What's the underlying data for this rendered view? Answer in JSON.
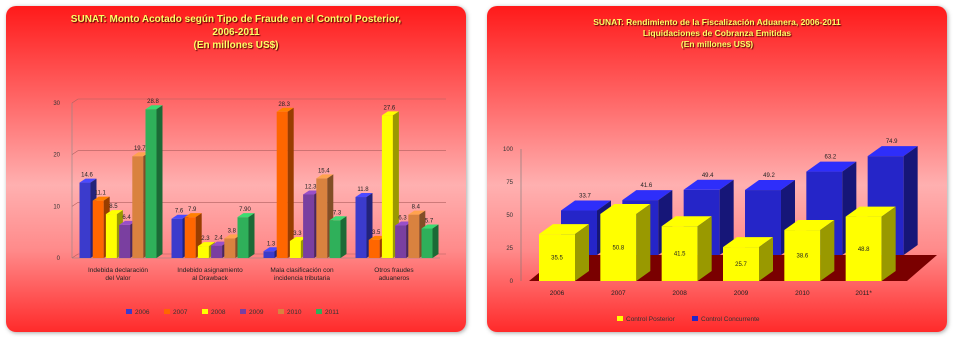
{
  "left_panel": {
    "title_lines": [
      "SUNAT: Monto Acotado según Tipo de Fraude en el Control Posterior,",
      "2006-2011",
      "(En millones US$)"
    ]
  },
  "right_panel": {
    "title_lines": [
      "SUNAT: Rendimiento de la Fiscalización Aduanera, 2006-2011",
      "Liquidaciones de Cobranza Emitidas",
      "(En millones US$)"
    ]
  },
  "colors": {
    "c2006": "#3b3bcc",
    "c2007": "#ff6600",
    "c2008": "#ffff00",
    "c2009": "#7a3fa0",
    "c2010": "#d9823f",
    "c2011": "#2fb05a",
    "blue": "#2525c8",
    "yellow": "#ffff00",
    "floor": "#7a0000"
  },
  "chart_data": [
    {
      "type": "bar",
      "title": "SUNAT: Monto Acotado según Tipo de Fraude en el Control Posterior, 2006-2011 (En millones US$)",
      "categories": [
        "Indebida declaración del Valor",
        "Indebido asignamiento al Drawback",
        "Mala clasificación con incidencia tributaria",
        "Otros fraudes aduaneros"
      ],
      "ylim": [
        0,
        30
      ],
      "yticks": [
        "0",
        "10",
        "20",
        "30"
      ],
      "legend_position": "bottom",
      "series": [
        {
          "name": "2006",
          "values": [
            14.6,
            7.6,
            1.3,
            11.8
          ],
          "labels": [
            "14.6",
            "7.6",
            "1.3",
            "11.8"
          ]
        },
        {
          "name": "2007",
          "values": [
            11.1,
            7.9,
            28.3,
            3.5
          ],
          "labels": [
            "11.1",
            "7.9",
            "28.3",
            "3.5"
          ]
        },
        {
          "name": "2008",
          "values": [
            8.5,
            2.3,
            3.3,
            27.6
          ],
          "labels": [
            "8.5",
            "2.3",
            "3.3",
            "27.6"
          ]
        },
        {
          "name": "2009",
          "values": [
            6.4,
            2.4,
            12.3,
            6.3
          ],
          "labels": [
            "6.4",
            "2.4",
            "12.3",
            "6.3"
          ]
        },
        {
          "name": "2010",
          "values": [
            19.7,
            3.8,
            15.4,
            8.4
          ],
          "labels": [
            "19.7",
            "3.8",
            "15.4",
            "8.4"
          ]
        },
        {
          "name": "2011",
          "values": [
            28.8,
            7.9,
            7.3,
            5.7
          ],
          "labels": [
            "28.8",
            "7.90",
            "7.3",
            "5.7"
          ]
        }
      ]
    },
    {
      "type": "bar",
      "title": "SUNAT: Rendimiento de la Fiscalización Aduanera, 2006-2011 Liquidaciones de Cobranza Emitidas (En millones US$)",
      "categories": [
        "2006",
        "2007",
        "2008",
        "2009",
        "2010",
        "2011*"
      ],
      "ylim": [
        0,
        100
      ],
      "yticks": [
        "0",
        "25",
        "50",
        "75",
        "100"
      ],
      "legend_position": "bottom",
      "series": [
        {
          "name": "Control Posterior",
          "values": [
            35.5,
            50.8,
            41.5,
            25.7,
            38.6,
            48.8
          ],
          "labels": [
            "35.5",
            "50.8",
            "41.5",
            "25.7",
            "38.6",
            "48.8"
          ]
        },
        {
          "name": "Control Concurrente",
          "values": [
            33.7,
            41.6,
            49.4,
            49.2,
            63.2,
            74.9
          ],
          "labels": [
            "33.7",
            "41.6",
            "49.4",
            "49.2",
            "63.2",
            "74.9"
          ]
        }
      ]
    }
  ]
}
